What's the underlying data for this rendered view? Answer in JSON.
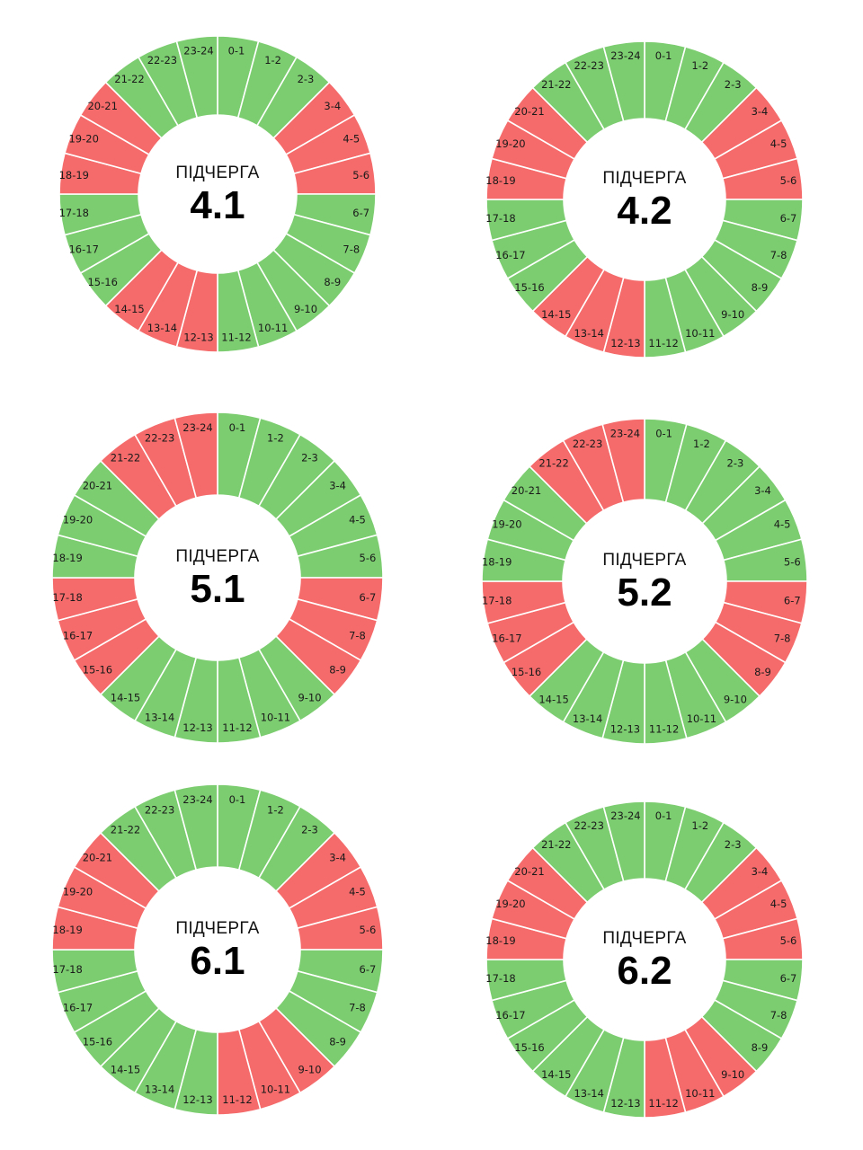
{
  "colors": {
    "on": "#7ccd70",
    "off": "#f56b6b",
    "hole": "#ffffff"
  },
  "legend_states": [
    "on",
    "off"
  ],
  "chart_data": [
    {
      "type": "pie",
      "caption": "ПІДЧЕРГА",
      "queue": "4.1",
      "categories": [
        "0-1",
        "1-2",
        "2-3",
        "3-4",
        "4-5",
        "5-6",
        "6-7",
        "7-8",
        "8-9",
        "9-10",
        "10-11",
        "11-12",
        "12-13",
        "13-14",
        "14-15",
        "15-16",
        "16-17",
        "17-18",
        "18-19",
        "19-20",
        "20-21",
        "21-22",
        "22-23",
        "23-24"
      ],
      "states": [
        "on",
        "on",
        "on",
        "off",
        "off",
        "off",
        "on",
        "on",
        "on",
        "on",
        "on",
        "on",
        "off",
        "off",
        "off",
        "on",
        "on",
        "on",
        "off",
        "off",
        "off",
        "on",
        "on",
        "on"
      ],
      "values": [
        1,
        1,
        1,
        1,
        1,
        1,
        1,
        1,
        1,
        1,
        1,
        1,
        1,
        1,
        1,
        1,
        1,
        1,
        1,
        1,
        1,
        1,
        1,
        1
      ]
    },
    {
      "type": "pie",
      "caption": "ПІДЧЕРГА",
      "queue": "4.2",
      "categories": [
        "0-1",
        "1-2",
        "2-3",
        "3-4",
        "4-5",
        "5-6",
        "6-7",
        "7-8",
        "8-9",
        "9-10",
        "10-11",
        "11-12",
        "12-13",
        "13-14",
        "14-15",
        "15-16",
        "16-17",
        "17-18",
        "18-19",
        "19-20",
        "20-21",
        "21-22",
        "22-23",
        "23-24"
      ],
      "states": [
        "on",
        "on",
        "on",
        "off",
        "off",
        "off",
        "on",
        "on",
        "on",
        "on",
        "on",
        "on",
        "off",
        "off",
        "off",
        "on",
        "on",
        "on",
        "off",
        "off",
        "off",
        "on",
        "on",
        "on"
      ],
      "values": [
        1,
        1,
        1,
        1,
        1,
        1,
        1,
        1,
        1,
        1,
        1,
        1,
        1,
        1,
        1,
        1,
        1,
        1,
        1,
        1,
        1,
        1,
        1,
        1
      ]
    },
    {
      "type": "pie",
      "caption": "ПІДЧЕРГА",
      "queue": "5.1",
      "categories": [
        "0-1",
        "1-2",
        "2-3",
        "3-4",
        "4-5",
        "5-6",
        "6-7",
        "7-8",
        "8-9",
        "9-10",
        "10-11",
        "11-12",
        "12-13",
        "13-14",
        "14-15",
        "15-16",
        "16-17",
        "17-18",
        "18-19",
        "19-20",
        "20-21",
        "21-22",
        "22-23",
        "23-24"
      ],
      "states": [
        "on",
        "on",
        "on",
        "on",
        "on",
        "on",
        "off",
        "off",
        "off",
        "on",
        "on",
        "on",
        "on",
        "on",
        "on",
        "off",
        "off",
        "off",
        "on",
        "on",
        "on",
        "off",
        "off",
        "off"
      ],
      "values": [
        1,
        1,
        1,
        1,
        1,
        1,
        1,
        1,
        1,
        1,
        1,
        1,
        1,
        1,
        1,
        1,
        1,
        1,
        1,
        1,
        1,
        1,
        1,
        1
      ]
    },
    {
      "type": "pie",
      "caption": "ПІДЧЕРГА",
      "queue": "5.2",
      "categories": [
        "0-1",
        "1-2",
        "2-3",
        "3-4",
        "4-5",
        "5-6",
        "6-7",
        "7-8",
        "8-9",
        "9-10",
        "10-11",
        "11-12",
        "12-13",
        "13-14",
        "14-15",
        "15-16",
        "16-17",
        "17-18",
        "18-19",
        "19-20",
        "20-21",
        "21-22",
        "22-23",
        "23-24"
      ],
      "states": [
        "on",
        "on",
        "on",
        "on",
        "on",
        "on",
        "off",
        "off",
        "off",
        "on",
        "on",
        "on",
        "on",
        "on",
        "on",
        "off",
        "off",
        "off",
        "on",
        "on",
        "on",
        "off",
        "off",
        "off"
      ],
      "values": [
        1,
        1,
        1,
        1,
        1,
        1,
        1,
        1,
        1,
        1,
        1,
        1,
        1,
        1,
        1,
        1,
        1,
        1,
        1,
        1,
        1,
        1,
        1,
        1
      ]
    },
    {
      "type": "pie",
      "caption": "ПІДЧЕРГА",
      "queue": "6.1",
      "categories": [
        "0-1",
        "1-2",
        "2-3",
        "3-4",
        "4-5",
        "5-6",
        "6-7",
        "7-8",
        "8-9",
        "9-10",
        "10-11",
        "11-12",
        "12-13",
        "13-14",
        "14-15",
        "15-16",
        "16-17",
        "17-18",
        "18-19",
        "19-20",
        "20-21",
        "21-22",
        "22-23",
        "23-24"
      ],
      "states": [
        "on",
        "on",
        "on",
        "off",
        "off",
        "off",
        "on",
        "on",
        "on",
        "off",
        "off",
        "off",
        "on",
        "on",
        "on",
        "on",
        "on",
        "on",
        "off",
        "off",
        "off",
        "on",
        "on",
        "on"
      ],
      "values": [
        1,
        1,
        1,
        1,
        1,
        1,
        1,
        1,
        1,
        1,
        1,
        1,
        1,
        1,
        1,
        1,
        1,
        1,
        1,
        1,
        1,
        1,
        1,
        1
      ]
    },
    {
      "type": "pie",
      "caption": "ПІДЧЕРГА",
      "queue": "6.2",
      "categories": [
        "0-1",
        "1-2",
        "2-3",
        "3-4",
        "4-5",
        "5-6",
        "6-7",
        "7-8",
        "8-9",
        "9-10",
        "10-11",
        "11-12",
        "12-13",
        "13-14",
        "14-15",
        "15-16",
        "16-17",
        "17-18",
        "18-19",
        "19-20",
        "20-21",
        "21-22",
        "22-23",
        "23-24"
      ],
      "states": [
        "on",
        "on",
        "on",
        "off",
        "off",
        "off",
        "on",
        "on",
        "on",
        "off",
        "off",
        "off",
        "on",
        "on",
        "on",
        "on",
        "on",
        "on",
        "off",
        "off",
        "off",
        "on",
        "on",
        "on"
      ],
      "values": [
        1,
        1,
        1,
        1,
        1,
        1,
        1,
        1,
        1,
        1,
        1,
        1,
        1,
        1,
        1,
        1,
        1,
        1,
        1,
        1,
        1,
        1,
        1,
        1
      ]
    }
  ]
}
